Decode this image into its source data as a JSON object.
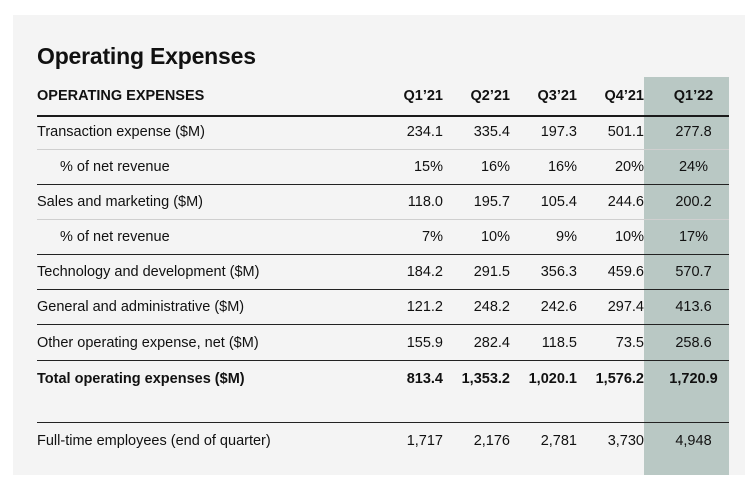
{
  "title": "Operating Expenses",
  "table": {
    "header": {
      "label": "OPERATING EXPENSES",
      "columns": [
        "Q1’21",
        "Q2’21",
        "Q3’21",
        "Q4’21",
        "Q1’22"
      ]
    },
    "rows": [
      {
        "label": "Transaction expense ($M)",
        "values": [
          "234.1",
          "335.4",
          "197.3",
          "501.1",
          "277.8"
        ]
      },
      {
        "label": "% of net revenue",
        "values": [
          "15%",
          "16%",
          "16%",
          "20%",
          "24%"
        ]
      },
      {
        "label": "Sales and marketing ($M)",
        "values": [
          "118.0",
          "195.7",
          "105.4",
          "244.6",
          "200.2"
        ]
      },
      {
        "label": "% of net revenue",
        "values": [
          "7%",
          "10%",
          "9%",
          "10%",
          "17%"
        ]
      },
      {
        "label": "Technology and development ($M)",
        "values": [
          "184.2",
          "291.5",
          "356.3",
          "459.6",
          "570.7"
        ]
      },
      {
        "label": "General and administrative ($M)",
        "values": [
          "121.2",
          "248.2",
          "242.6",
          "297.4",
          "413.6"
        ]
      },
      {
        "label": "Other operating expense, net ($M)",
        "values": [
          "155.9",
          "282.4",
          "118.5",
          "73.5",
          "258.6"
        ]
      },
      {
        "label": "Total operating expenses ($M)",
        "values": [
          "813.4",
          "1,353.2",
          "1,020.1",
          "1,576.2",
          "1,720.9"
        ]
      },
      {
        "label": "Full-time employees (end of quarter)",
        "values": [
          "1,717",
          "2,176",
          "2,781",
          "3,730",
          "4,948"
        ]
      }
    ]
  },
  "colors": {
    "card_background": "#f4f4f4",
    "highlight_column": "#b9c8c4",
    "text": "#111111"
  }
}
